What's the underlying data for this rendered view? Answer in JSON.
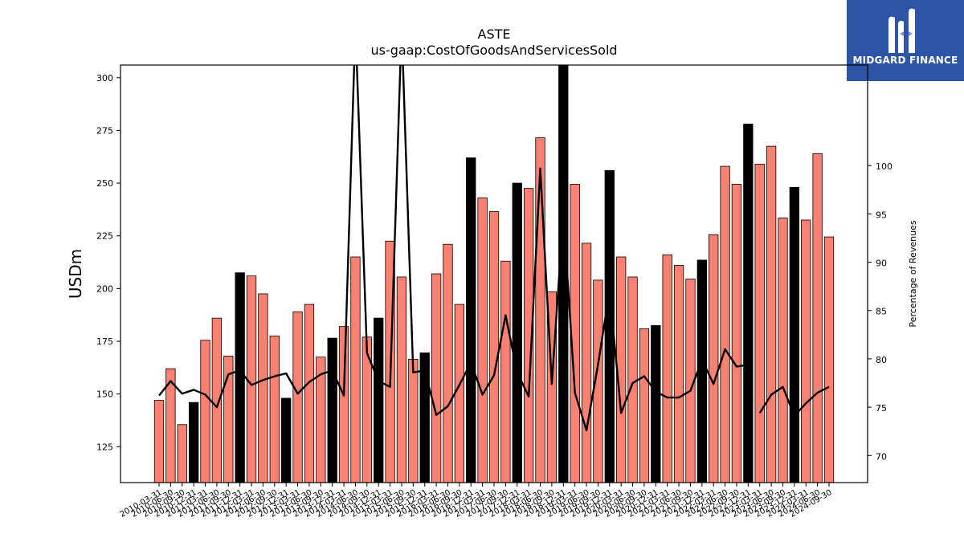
{
  "brand": {
    "name": "MIDGARD FINANCE"
  },
  "colors": {
    "bar_normal": "#fa8072",
    "bar_highlight": "#000000",
    "line": "#000000",
    "logo_bg": "#2c55a8"
  },
  "chart_data": {
    "type": "bar",
    "title": "ASTE",
    "subtitle": "us-gaap:CostOfGoodsAndServicesSold",
    "ylabel": "USDm",
    "y2label": "Percentage of Revenues",
    "ylim": [
      108,
      306
    ],
    "y2lim": [
      67.2,
      110.4
    ],
    "yticks": [
      125,
      150,
      175,
      200,
      225,
      250,
      275,
      300
    ],
    "y2ticks": [
      70,
      75,
      80,
      85,
      90,
      95,
      100
    ],
    "categories": [
      "2010-03-31",
      "2010-06-30",
      "2010-09-30",
      "2010-12-31",
      "2011-03-31",
      "2011-06-30",
      "2011-09-30",
      "2011-12-31",
      "2012-03-31",
      "2012-06-30",
      "2012-09-30",
      "2012-12-31",
      "2013-03-31",
      "2013-06-30",
      "2013-09-30",
      "2013-12-31",
      "2014-03-31",
      "2014-06-30",
      "2014-09-30",
      "2014-12-31",
      "2015-03-31",
      "2015-06-30",
      "2015-09-30",
      "2015-12-31",
      "2016-03-31",
      "2016-06-30",
      "2016-09-30",
      "2016-12-31",
      "2017-03-31",
      "2017-06-30",
      "2017-09-30",
      "2017-12-31",
      "2018-03-31",
      "2018-06-30",
      "2018-09-30",
      "2018-12-31",
      "2019-03-31",
      "2019-06-30",
      "2019-09-30",
      "2019-12-31",
      "2020-03-31",
      "2020-06-30",
      "2020-09-30",
      "2020-12-31",
      "2021-03-31",
      "2021-06-30",
      "2021-09-30",
      "2021-12-31",
      "2022-03-31",
      "2022-06-30",
      "2022-09-30",
      "2022-12-31",
      "2023-03-31",
      "2023-06-30",
      "2023-09-30",
      "2023-12-31",
      "2024-03-31",
      "2024-06-30",
      "2024-09-30"
    ],
    "x_tick_labels": [
      "2010-03-31",
      "2010-06-30",
      "2010-09-30",
      "2010-12-31",
      "2011-03-31",
      "2011-06-30",
      "2011-09-30",
      "2011-12-31",
      "2012-03-31",
      "2012-06-30",
      "2012-09-30",
      "2012-12-31",
      "2013-03-31",
      "2013-06-30",
      "2013-09-30",
      "2013-12-31",
      "2014-03-31",
      "2014-06-30",
      "2014-09-30",
      "2014-12-31",
      "2015-03-31",
      "2015-06-30",
      "2015-09-30",
      "2015-12-31",
      "2016-03-31",
      "2016-06-30",
      "2016-09-30",
      "2016-12-31",
      "2017-03-31",
      "2017-06-30",
      "2017-09-30",
      "2017-12-31",
      "2018-03-31",
      "2018-06-30",
      "2018-09-30",
      "2018-12-31",
      "2019-03-31",
      "2019-06-30",
      "2019-09-30",
      "2019-12-31",
      "2020-03-31",
      "2020-06-30",
      "2020-09-30",
      "2020-12-31",
      "2021-03-31",
      "2021-06-30",
      "2021-09-30",
      "2021-12-31",
      "2022-03-31",
      "2022-06-30",
      "2022-09-30",
      "2022-12-31",
      "2023-03-31",
      "2023-06-30",
      "2023-09-30",
      "2023-12-31",
      "2024-03-31",
      "2024-06-30",
      "2024-09-30"
    ],
    "series": [
      {
        "type": "bar",
        "values": [
          147,
          162,
          135.5,
          146,
          175.5,
          186,
          168,
          207.5,
          206,
          197.5,
          177.5,
          148,
          189,
          192.5,
          167.5,
          176.5,
          182,
          215,
          177,
          186,
          222.5,
          205.5,
          166.5,
          169.5,
          207,
          221,
          192.5,
          262,
          243,
          236.5,
          213,
          250,
          247.5,
          271.5,
          198.5,
          310,
          249.5,
          221.5,
          204,
          256,
          215,
          205.5,
          181,
          182.5,
          216,
          211,
          204.5,
          213.5,
          225.5,
          258,
          249.5,
          278,
          259,
          267.5,
          233.5,
          248,
          232.5,
          264,
          224.5
        ],
        "highlight": [
          false,
          false,
          false,
          true,
          false,
          false,
          false,
          true,
          false,
          false,
          false,
          true,
          false,
          false,
          false,
          true,
          false,
          false,
          false,
          true,
          false,
          false,
          false,
          true,
          false,
          false,
          false,
          true,
          false,
          false,
          false,
          true,
          false,
          false,
          false,
          true,
          false,
          false,
          false,
          true,
          false,
          false,
          false,
          true,
          false,
          false,
          false,
          true,
          false,
          false,
          false,
          true,
          false,
          false,
          false,
          true,
          false,
          false,
          false
        ]
      },
      {
        "type": "line",
        "axis": "right",
        "values": [
          76.2,
          77.7,
          76.4,
          76.8,
          76.3,
          75.0,
          78.4,
          78.8,
          77.3,
          77.8,
          78.2,
          78.5,
          76.4,
          77.6,
          78.4,
          78.8,
          76.2,
          125.0,
          80.6,
          77.7,
          77.1,
          135.0,
          78.6,
          78.8,
          74.2,
          75.1,
          77.3,
          79.6,
          76.3,
          78.3,
          84.5,
          78.6,
          76.1,
          99.7,
          77.4,
          95.0,
          76.5,
          72.6,
          79.4,
          87.0,
          74.4,
          77.5,
          78.2,
          76.6,
          76.0,
          76.0,
          76.7,
          79.9,
          77.4,
          81.0,
          79.2,
          79.4,
          74.4,
          76.3,
          77.1,
          74.1,
          75.4,
          76.5,
          77.1
        ],
        "gaps_after": [
          51
        ]
      }
    ],
    "grid": false,
    "legend": "none"
  }
}
